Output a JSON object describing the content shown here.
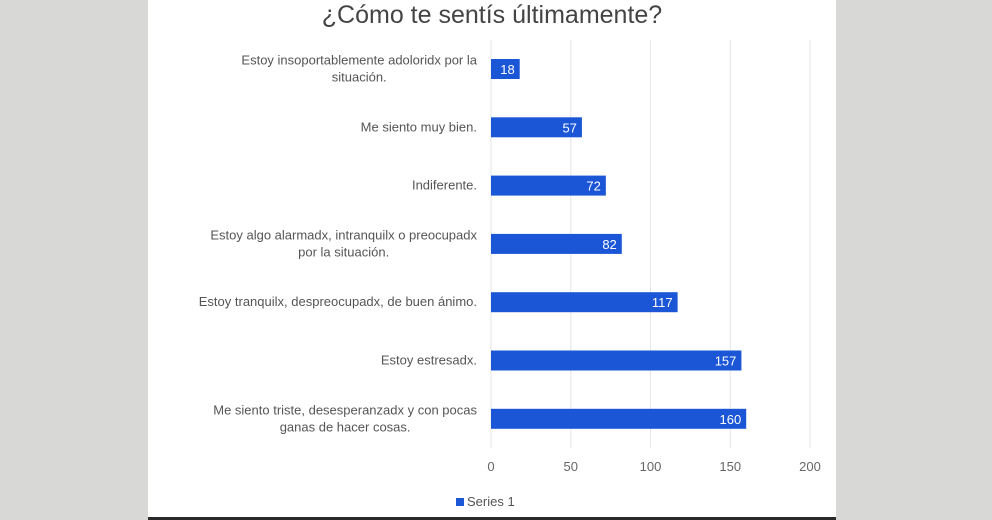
{
  "chart_data": {
    "type": "bar",
    "orientation": "horizontal",
    "title": "¿Cómo te sentís últimamente?",
    "categories": [
      [
        "Estoy insoportablemente adoloridx por la",
        "situación."
      ],
      [
        "Me siento muy bien."
      ],
      [
        "Indiferente."
      ],
      [
        "Estoy algo alarmadx, intranquilx o preocupadx",
        "por la situación."
      ],
      [
        "Estoy tranquilx, despreocupadx, de buen ánimo."
      ],
      [
        "Estoy estresadx."
      ],
      [
        "Me siento triste, desesperanzadx y con pocas",
        "ganas de hacer cosas."
      ]
    ],
    "series": [
      {
        "name": "Series 1",
        "values": [
          18,
          57,
          72,
          82,
          117,
          157,
          160
        ],
        "color": "#1a56d6"
      }
    ],
    "xlim": [
      0,
      200
    ],
    "xticks": [
      0,
      50,
      100,
      150,
      200
    ],
    "grid": true,
    "legend": "bottom-left",
    "xlabel": "",
    "ylabel": ""
  }
}
